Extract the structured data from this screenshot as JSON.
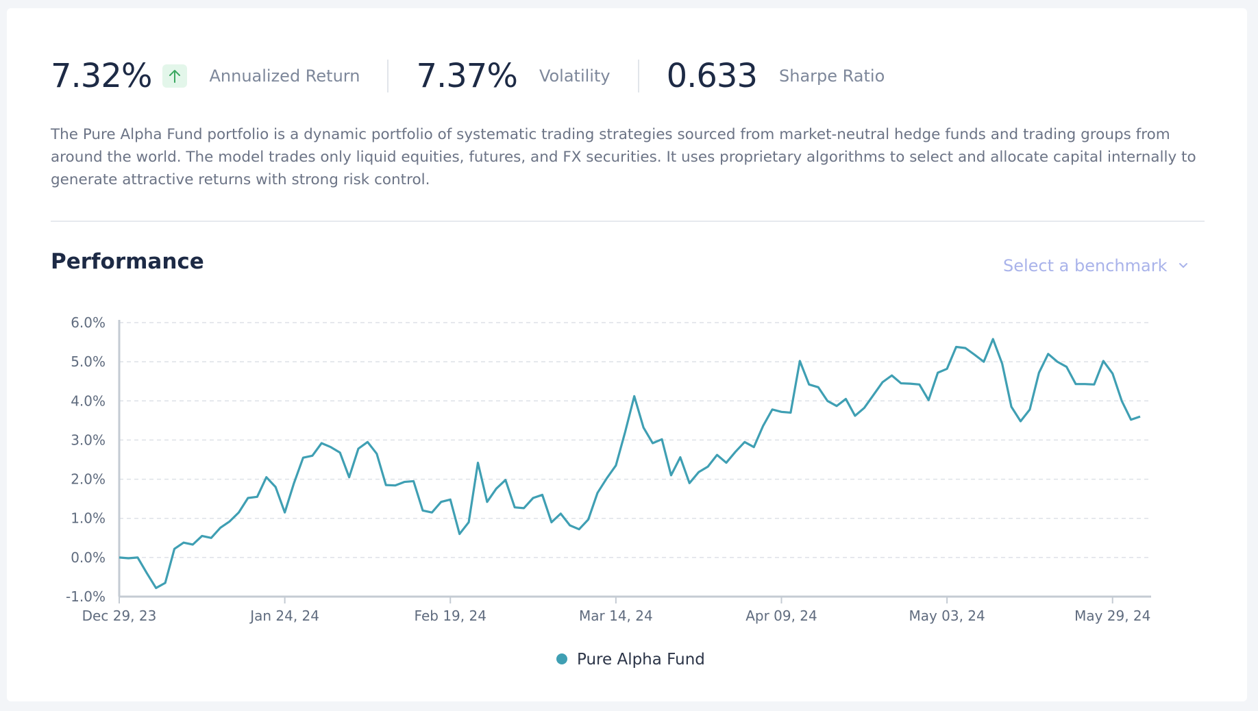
{
  "stats": [
    {
      "value": "7.32%",
      "label": "Annualized Return"
    },
    {
      "value": "7.37%",
      "label": "Volatility"
    },
    {
      "value": "0.633",
      "label": "Sharpe Ratio"
    }
  ],
  "description": "The Pure Alpha Fund portfolio is a dynamic portfolio of systematic trading strategies sourced from market-neutral hedge funds and trading groups from around the world. The model trades only liquid equities, futures, and FX securities. It uses proprietary algorithms to select and allocate capital internally to generate attractive returns with strong risk control.",
  "section_title": "Performance",
  "benchmark_placeholder": "Select a benchmark",
  "chart_data": {
    "type": "line",
    "categories": [
      "Dec 29, 23",
      null,
      null,
      null,
      null,
      null,
      null,
      null,
      null,
      null,
      null,
      null,
      null,
      null,
      null,
      null,
      null,
      null,
      "Jan 24, 24",
      null,
      null,
      null,
      null,
      null,
      null,
      null,
      null,
      null,
      null,
      null,
      null,
      null,
      null,
      null,
      null,
      null,
      "Feb 19, 24",
      null,
      null,
      null,
      null,
      null,
      null,
      null,
      null,
      null,
      null,
      null,
      null,
      null,
      null,
      null,
      null,
      null,
      "Mar 14, 24",
      null,
      null,
      null,
      null,
      null,
      null,
      null,
      null,
      null,
      null,
      null,
      null,
      null,
      null,
      null,
      null,
      null,
      "Apr 09, 24",
      null,
      null,
      null,
      null,
      null,
      null,
      null,
      null,
      null,
      null,
      null,
      null,
      null,
      null,
      null,
      null,
      null,
      "May 03, 24",
      null,
      null,
      null,
      null,
      null,
      null,
      null,
      null,
      null,
      null,
      null,
      null,
      null,
      null,
      null,
      null,
      null,
      "May 29, 24",
      null,
      null,
      null
    ],
    "series": [
      {
        "name": "Pure Alpha Fund",
        "color": "#3f9fb3",
        "values": [
          0.0,
          -0.02,
          0.0,
          -0.4,
          -0.78,
          -0.65,
          0.22,
          0.38,
          0.33,
          0.55,
          0.5,
          0.76,
          0.92,
          1.15,
          1.52,
          1.55,
          2.05,
          1.8,
          1.15,
          1.9,
          2.55,
          2.6,
          2.92,
          2.82,
          2.68,
          2.05,
          2.78,
          2.95,
          2.65,
          1.85,
          1.84,
          1.93,
          1.95,
          1.2,
          1.15,
          1.42,
          1.48,
          0.6,
          0.9,
          2.42,
          1.42,
          1.76,
          1.98,
          1.28,
          1.26,
          1.52,
          1.6,
          0.9,
          1.12,
          0.82,
          0.72,
          0.97,
          1.65,
          2.02,
          2.35,
          3.2,
          4.12,
          3.32,
          2.92,
          3.02,
          2.1,
          2.56,
          1.9,
          2.18,
          2.32,
          2.62,
          2.42,
          2.7,
          2.95,
          2.82,
          3.36,
          3.78,
          3.72,
          3.7,
          5.02,
          4.42,
          4.35,
          4.0,
          3.87,
          4.05,
          3.62,
          3.82,
          4.15,
          4.48,
          4.65,
          4.45,
          4.44,
          4.42,
          4.02,
          4.72,
          4.82,
          5.38,
          5.35,
          5.18,
          5.0,
          5.58,
          4.95,
          3.85,
          3.48,
          3.78,
          4.72,
          5.2,
          5.0,
          4.87,
          4.43,
          4.43,
          4.42,
          5.02,
          4.7,
          4.0,
          3.52,
          3.6
        ]
      }
    ],
    "ylim": [
      -1,
      6
    ],
    "yticks": [
      {
        "value": -1,
        "label": "-1.0%"
      },
      {
        "value": 0,
        "label": "0.0%"
      },
      {
        "value": 1,
        "label": "1.0%"
      },
      {
        "value": 2,
        "label": "2.0%"
      },
      {
        "value": 3,
        "label": "3.0%"
      },
      {
        "value": 4,
        "label": "4.0%"
      },
      {
        "value": 5,
        "label": "5.0%"
      },
      {
        "value": 6,
        "label": "6.0%"
      }
    ],
    "grid": true
  }
}
